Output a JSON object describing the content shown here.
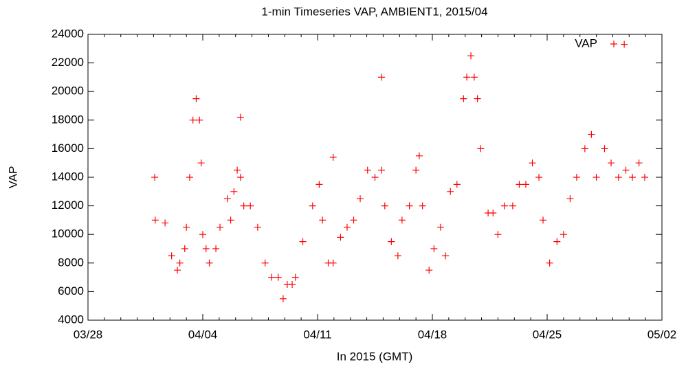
{
  "chart_data": {
    "type": "scatter",
    "title": "1-min Timeseries VAP, AMBIENT1, 2015/04",
    "x_label": "In 2015 (GMT)",
    "y_label": "VAP",
    "series": [
      {
        "name": "VAP",
        "color": "#ff0000",
        "x": [
          4.07,
          4.1,
          4.7,
          5.1,
          5.45,
          5.6,
          5.9,
          6.0,
          6.2,
          6.4,
          6.6,
          6.8,
          6.9,
          7.0,
          7.2,
          7.4,
          7.8,
          8.05,
          8.5,
          8.7,
          8.9,
          9.1,
          9.3,
          9.3,
          9.5,
          9.9,
          10.35,
          10.8,
          11.2,
          11.6,
          11.9,
          12.15,
          12.45,
          12.65,
          13.1,
          13.7,
          14.1,
          14.3,
          14.65,
          14.95,
          14.95,
          15.4,
          15.8,
          16.2,
          16.6,
          17.05,
          17.5,
          17.9,
          17.9,
          18.1,
          18.5,
          18.9,
          19.15,
          19.6,
          20.0,
          20.2,
          20.4,
          20.8,
          21.1,
          21.5,
          21.8,
          22.1,
          22.5,
          22.9,
          23.1,
          23.35,
          23.55,
          23.75,
          23.95,
          24.4,
          24.7,
          25.0,
          25.4,
          25.9,
          26.3,
          26.7,
          27.1,
          27.5,
          27.75,
          28.15,
          28.6,
          29.0,
          29.4,
          29.8,
          30.3,
          30.7,
          31.0,
          31.5,
          31.9,
          32.35,
          32.7,
          32.8,
          33.2,
          33.6,
          33.95
        ],
        "values": [
          14000,
          11000,
          10800,
          8500,
          7500,
          8000,
          9000,
          10500,
          14000,
          18000,
          19500,
          18000,
          15000,
          10000,
          9000,
          8000,
          9000,
          10500,
          12500,
          11000,
          13000,
          14500,
          14000,
          18200,
          12000,
          12000,
          10500,
          8000,
          7000,
          7000,
          5500,
          6500,
          6500,
          7000,
          9500,
          12000,
          13500,
          11000,
          8000,
          8000,
          15400,
          9800,
          10500,
          11000,
          12500,
          14500,
          14000,
          14500,
          21000,
          12000,
          9500,
          8500,
          11000,
          12000,
          14500,
          15500,
          12000,
          7500,
          9000,
          10500,
          8500,
          13000,
          13500,
          19500,
          21000,
          22500,
          21000,
          19500,
          16000,
          11500,
          11500,
          10000,
          12000,
          12000,
          13500,
          13500,
          15000,
          14000,
          11000,
          8000,
          9500,
          10000,
          12500,
          14000,
          16000,
          17000,
          14000,
          16000,
          15000,
          14000,
          23300,
          14500,
          14000,
          15000,
          14000
        ]
      }
    ],
    "xlim": [
      0,
      35
    ],
    "xticks": [
      {
        "value": 0,
        "label": "03/28"
      },
      {
        "value": 7,
        "label": "04/04"
      },
      {
        "value": 14,
        "label": "04/11"
      },
      {
        "value": 21,
        "label": "04/18"
      },
      {
        "value": 28,
        "label": "04/25"
      },
      {
        "value": 35,
        "label": "05/02"
      }
    ],
    "ylim": [
      4000,
      24000
    ],
    "yticks": [
      4000,
      6000,
      8000,
      10000,
      12000,
      14000,
      16000,
      18000,
      20000,
      22000,
      24000
    ],
    "legend": "upper right",
    "grid": false
  }
}
